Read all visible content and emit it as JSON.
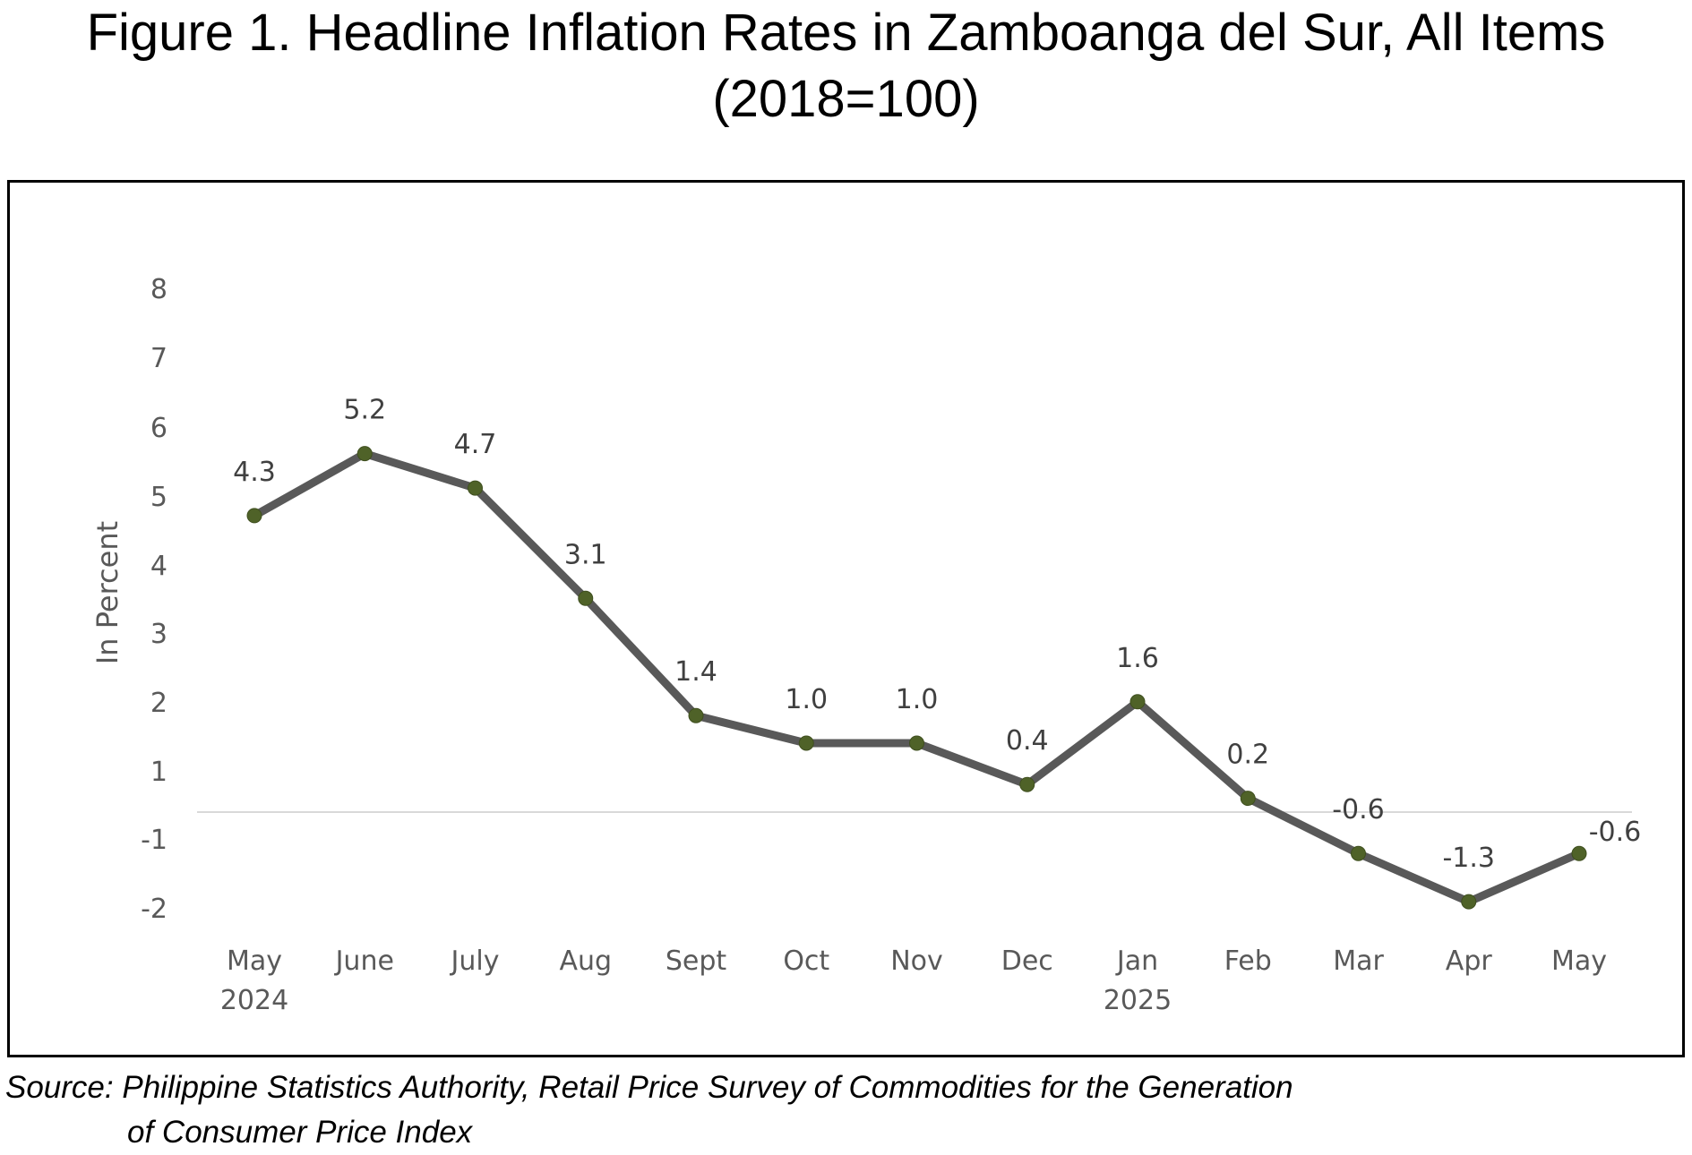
{
  "title": {
    "line1": "Figure 1. Headline Inflation Rates in Zamboanga del Sur, All Items",
    "line2": "(2018=100)"
  },
  "source": {
    "label": "Source:",
    "line1": "Philippine Statistics Authority, Retail Price Survey of Commodities for the Generation",
    "line2": "of Consumer Price Index"
  },
  "chart_data": {
    "type": "line",
    "ylabel": "In Percent",
    "ytick_labels": [
      "8",
      "7",
      "6",
      "5",
      "4",
      "3",
      "2",
      "1",
      "-1",
      "-2"
    ],
    "categories": [
      [
        "May",
        "2024"
      ],
      [
        "June",
        ""
      ],
      [
        "July",
        ""
      ],
      [
        "Aug",
        ""
      ],
      [
        "Sept",
        ""
      ],
      [
        "Oct",
        ""
      ],
      [
        "Nov",
        ""
      ],
      [
        "Dec",
        ""
      ],
      [
        "Jan",
        "2025"
      ],
      [
        "Feb",
        ""
      ],
      [
        "Mar",
        ""
      ],
      [
        "Apr",
        ""
      ],
      [
        "May",
        ""
      ]
    ],
    "series": [
      {
        "values": [
          4.3,
          5.2,
          4.7,
          3.1,
          1.4,
          1.0,
          1.0,
          0.4,
          1.6,
          0.2,
          -0.6,
          -1.3,
          -0.6
        ],
        "labels": [
          "4.3",
          "5.2",
          "4.7",
          "3.1",
          "1.4",
          "1.0",
          "1.0",
          "0.4",
          "1.6",
          "0.2",
          "-0.6",
          "-1.3",
          "-0.6"
        ],
        "line_color": "#595959",
        "marker_color": "#4f6228"
      }
    ],
    "grid": false,
    "legend": "none"
  }
}
